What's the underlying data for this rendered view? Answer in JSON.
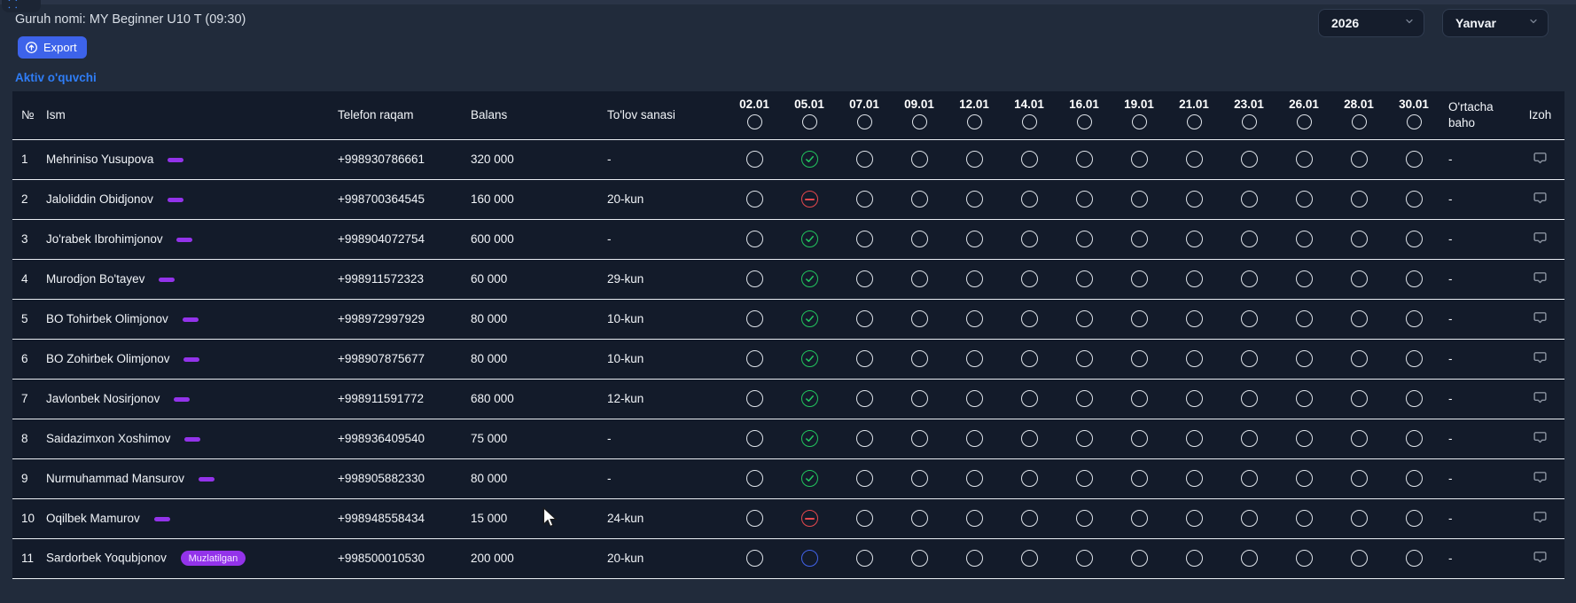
{
  "header": {
    "group_label": "Guruh nomi: MY Beginner U10 T (09:30)",
    "export_label": "Export",
    "active_link": "Aktiv o'quvchi",
    "year_value": "2026",
    "month_value": "Yanvar"
  },
  "table": {
    "columns": {
      "num": "№",
      "name": "Ism",
      "phone": "Telefon raqam",
      "balance": "Balans",
      "payday": "To'lov sanasi",
      "avg": "O'rtacha baho",
      "note": "Izoh"
    },
    "dates": [
      "02.01",
      "05.01",
      "07.01",
      "09.01",
      "12.01",
      "14.01",
      "16.01",
      "19.01",
      "21.01",
      "23.01",
      "26.01",
      "28.01",
      "30.01"
    ],
    "rows": [
      {
        "num": "1",
        "name": "Mehriniso Yusupova",
        "badge": "",
        "phone": "+998930786661",
        "balance": "320 000",
        "payday": "-",
        "attendance": {
          "05.01": "present"
        },
        "avg": "-"
      },
      {
        "num": "2",
        "name": "Jaloliddin Obidjonov",
        "badge": "",
        "phone": "+998700364545",
        "balance": "160 000",
        "payday": "20-kun",
        "attendance": {
          "05.01": "absent"
        },
        "avg": "-"
      },
      {
        "num": "3",
        "name": "Jo'rabek Ibrohimjonov",
        "badge": "",
        "phone": "+998904072754",
        "balance": "600 000",
        "payday": "-",
        "attendance": {
          "05.01": "present"
        },
        "avg": "-"
      },
      {
        "num": "4",
        "name": "Murodjon Bo'tayev",
        "badge": "",
        "phone": "+998911572323",
        "balance": "60 000",
        "payday": "29-kun",
        "attendance": {
          "05.01": "present"
        },
        "avg": "-"
      },
      {
        "num": "5",
        "name": "BO Tohirbek Olimjonov",
        "badge": "",
        "phone": "+998972997929",
        "balance": "80 000",
        "payday": "10-kun",
        "attendance": {
          "05.01": "present"
        },
        "avg": "-"
      },
      {
        "num": "6",
        "name": "BO Zohirbek Olimjonov",
        "badge": "",
        "phone": "+998907875677",
        "balance": "80 000",
        "payday": "10-kun",
        "attendance": {
          "05.01": "present"
        },
        "avg": "-"
      },
      {
        "num": "7",
        "name": "Javlonbek Nosirjonov",
        "badge": "",
        "phone": "+998911591772",
        "balance": "680 000",
        "payday": "12-kun",
        "attendance": {
          "05.01": "present"
        },
        "avg": "-"
      },
      {
        "num": "8",
        "name": "Saidazimxon Xoshimov",
        "badge": "",
        "phone": "+998936409540",
        "balance": "75 000",
        "payday": "-",
        "attendance": {
          "05.01": "present"
        },
        "avg": "-"
      },
      {
        "num": "9",
        "name": "Nurmuhammad Mansurov",
        "badge": "",
        "phone": "+998905882330",
        "balance": "80 000",
        "payday": "-",
        "attendance": {
          "05.01": "present"
        },
        "avg": "-"
      },
      {
        "num": "10",
        "name": "Oqilbek Mamurov",
        "badge": "",
        "phone": "+998948558434",
        "balance": "15 000",
        "payday": "24-kun",
        "attendance": {
          "05.01": "absent"
        },
        "avg": "-"
      },
      {
        "num": "11",
        "name": "Sardorbek Yoqubjonov",
        "badge": "Muzlatilgan",
        "phone": "+998500010530",
        "balance": "200 000",
        "payday": "20-kun",
        "attendance": {
          "05.01": "frozen"
        },
        "avg": "-"
      }
    ]
  },
  "icons": {
    "export": "upload-circle-icon",
    "dropdown": "chevron-down-icon",
    "note": "comment-icon",
    "present": "check-circle-icon",
    "absent": "minus-circle-icon",
    "frozen": "empty-blue-circle-icon"
  },
  "colors": {
    "page_bg": "#212b3b",
    "table_bg": "#131b2a",
    "accent_blue": "#3d63ea",
    "link_blue": "#2f7df6",
    "present_green": "#22c55e",
    "absent_red": "#e5484d",
    "frozen_blue": "#4263eb",
    "badge_purple": "#9333ea",
    "separator": "#e9edf2"
  }
}
